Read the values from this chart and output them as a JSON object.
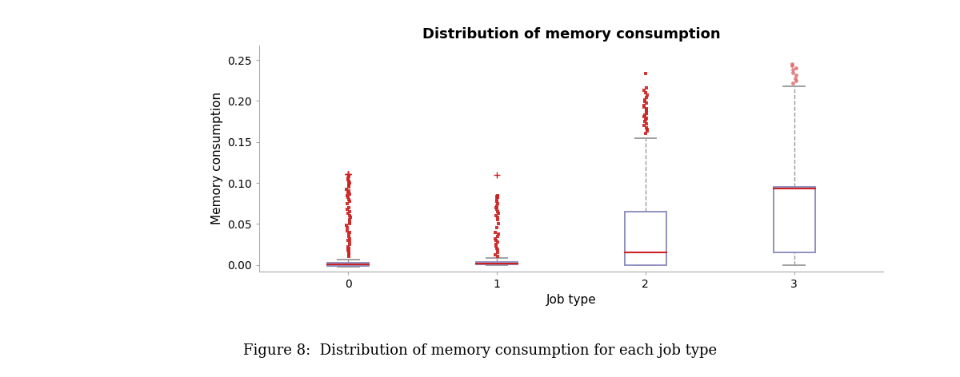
{
  "title": "Distribution of memory consumption",
  "xlabel": "Job type",
  "ylabel": "Memory consumption",
  "categories": [
    0,
    1,
    2,
    3
  ],
  "ylim": [
    -0.008,
    0.268
  ],
  "yticks": [
    0.0,
    0.05,
    0.1,
    0.15,
    0.2,
    0.25
  ],
  "box_color": "#8888bb",
  "median_color": "#cc2222",
  "whisker_color": "#999999",
  "outlier_color_sq": "#cc2222",
  "outlier_color_circ": "#dd6666",
  "background_color": "#ffffff",
  "title_fontsize": 13,
  "label_fontsize": 11,
  "tick_fontsize": 10,
  "caption": "Figure 8:  Distribution of memory consumption for each job type",
  "caption_fontsize": 13,
  "fig_width": 12.0,
  "fig_height": 4.72,
  "box_width": 0.28,
  "boxes": [
    {
      "q1": -0.001,
      "median": 0.001,
      "q3": 0.003,
      "whislo": -0.002,
      "whishi": 0.006,
      "fliers_sq": [
        0.01,
        0.012,
        0.014,
        0.016,
        0.018,
        0.02,
        0.022,
        0.025,
        0.028,
        0.03,
        0.032,
        0.035,
        0.038,
        0.04,
        0.042,
        0.045,
        0.048,
        0.05,
        0.052,
        0.055,
        0.058,
        0.06,
        0.063,
        0.065,
        0.068,
        0.07,
        0.075,
        0.078,
        0.08,
        0.082,
        0.084,
        0.086,
        0.088,
        0.09,
        0.092,
        0.095,
        0.097,
        0.099,
        0.1,
        0.102,
        0.104,
        0.106,
        0.108
      ],
      "fliers_plus": [
        0.111,
        0.111,
        0.111
      ]
    },
    {
      "q1": 0.001,
      "median": 0.002,
      "q3": 0.004,
      "whislo": 0.0,
      "whishi": 0.008,
      "fliers_sq": [
        0.01,
        0.012,
        0.015,
        0.018,
        0.02,
        0.023,
        0.025,
        0.028,
        0.03,
        0.032,
        0.035,
        0.038,
        0.04,
        0.045,
        0.05,
        0.055,
        0.058,
        0.06,
        0.063,
        0.065,
        0.068,
        0.07,
        0.072,
        0.075,
        0.078,
        0.08,
        0.082,
        0.083,
        0.084
      ],
      "fliers_plus": [
        0.11
      ]
    },
    {
      "q1": 0.0,
      "median": 0.015,
      "q3": 0.065,
      "whislo": 0.0,
      "whishi": 0.155,
      "fliers_sq": [
        0.16,
        0.163,
        0.165,
        0.167,
        0.17,
        0.172,
        0.175,
        0.177,
        0.179,
        0.181,
        0.183,
        0.185,
        0.187,
        0.189,
        0.191,
        0.193,
        0.195,
        0.197,
        0.199,
        0.201,
        0.204,
        0.207,
        0.21,
        0.213,
        0.216,
        0.234
      ],
      "fliers_plus": []
    },
    {
      "q1": 0.015,
      "median": 0.093,
      "q3": 0.095,
      "whislo": 0.0,
      "whishi": 0.218,
      "fliers_sq": [],
      "fliers_circ": [
        0.222,
        0.225,
        0.228,
        0.232,
        0.235,
        0.238,
        0.24,
        0.243,
        0.245
      ],
      "fliers_plus": []
    }
  ]
}
